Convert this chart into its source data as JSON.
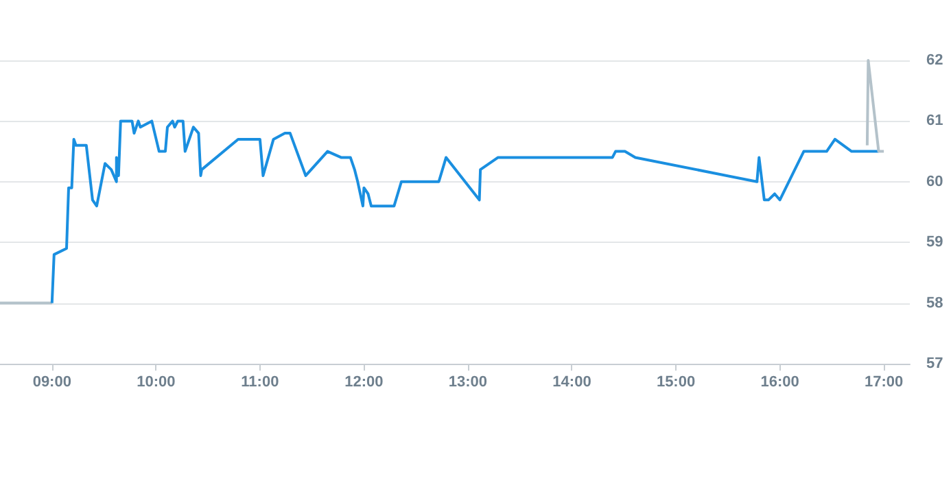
{
  "chart_data": {
    "type": "line",
    "xlim": [
      8.5,
      17.25
    ],
    "xticks": [
      {
        "value": 9,
        "label": "09:00"
      },
      {
        "value": 10,
        "label": "10:00"
      },
      {
        "value": 11,
        "label": "11:00"
      },
      {
        "value": 12,
        "label": "12:00"
      },
      {
        "value": 13,
        "label": "13:00"
      },
      {
        "value": 14,
        "label": "14:00"
      },
      {
        "value": 15,
        "label": "15:00"
      },
      {
        "value": 16,
        "label": "16:00"
      },
      {
        "value": 17,
        "label": "17:00"
      }
    ],
    "ylim": [
      57,
      62
    ],
    "yticks": [
      57,
      58,
      59,
      60,
      61,
      62
    ],
    "grid": "y",
    "marker": "none",
    "line_style": "solid",
    "series": [
      {
        "color": "#b4c2ca",
        "x": [
          8.5,
          9.0
        ],
        "values": [
          58.0,
          58.0
        ]
      },
      {
        "color": "#1a8fe0",
        "x": [
          9.0,
          9.02,
          9.14,
          9.16,
          9.19,
          9.21,
          9.23,
          9.33,
          9.39,
          9.43,
          9.51,
          9.57,
          9.62,
          9.62,
          9.64,
          9.66,
          9.77,
          9.79,
          9.83,
          9.85,
          9.96,
          10.03,
          10.09,
          10.11,
          10.16,
          10.18,
          10.21,
          10.26,
          10.28,
          10.36,
          10.41,
          10.43,
          10.44,
          10.79,
          11.0,
          11.03,
          11.13,
          11.24,
          11.29,
          11.44,
          11.65,
          11.78,
          11.87,
          11.91,
          11.94,
          11.99,
          12.0,
          12.04,
          12.07,
          12.29,
          12.36,
          12.72,
          12.79,
          13.11,
          13.12,
          13.29,
          14.39,
          14.42,
          14.51,
          14.61,
          15.78,
          15.8,
          15.85,
          15.89,
          15.95,
          16.0,
          16.23,
          16.45,
          16.53,
          16.69,
          16.95
        ],
        "values": [
          58.0,
          58.8,
          58.9,
          59.9,
          59.9,
          60.7,
          60.6,
          60.6,
          59.7,
          59.6,
          60.3,
          60.2,
          60.0,
          60.4,
          60.1,
          61.0,
          61.0,
          60.8,
          61.0,
          60.9,
          61.0,
          60.5,
          60.5,
          60.9,
          61.0,
          60.9,
          61.0,
          61.0,
          60.5,
          60.9,
          60.8,
          60.1,
          60.2,
          60.7,
          60.7,
          60.1,
          60.7,
          60.8,
          60.8,
          60.1,
          60.5,
          60.4,
          60.4,
          60.2,
          60.0,
          59.6,
          59.9,
          59.8,
          59.6,
          59.6,
          60.0,
          60.0,
          60.4,
          59.7,
          60.2,
          60.4,
          60.4,
          60.5,
          60.5,
          60.4,
          60.0,
          60.4,
          59.7,
          59.7,
          59.8,
          59.7,
          60.5,
          60.5,
          60.7,
          60.5,
          60.5
        ]
      },
      {
        "color": "#b4c2ca",
        "x": [
          16.84,
          16.85,
          16.95,
          17.0
        ],
        "values": [
          60.6,
          62.0,
          60.5,
          60.5
        ]
      }
    ]
  }
}
